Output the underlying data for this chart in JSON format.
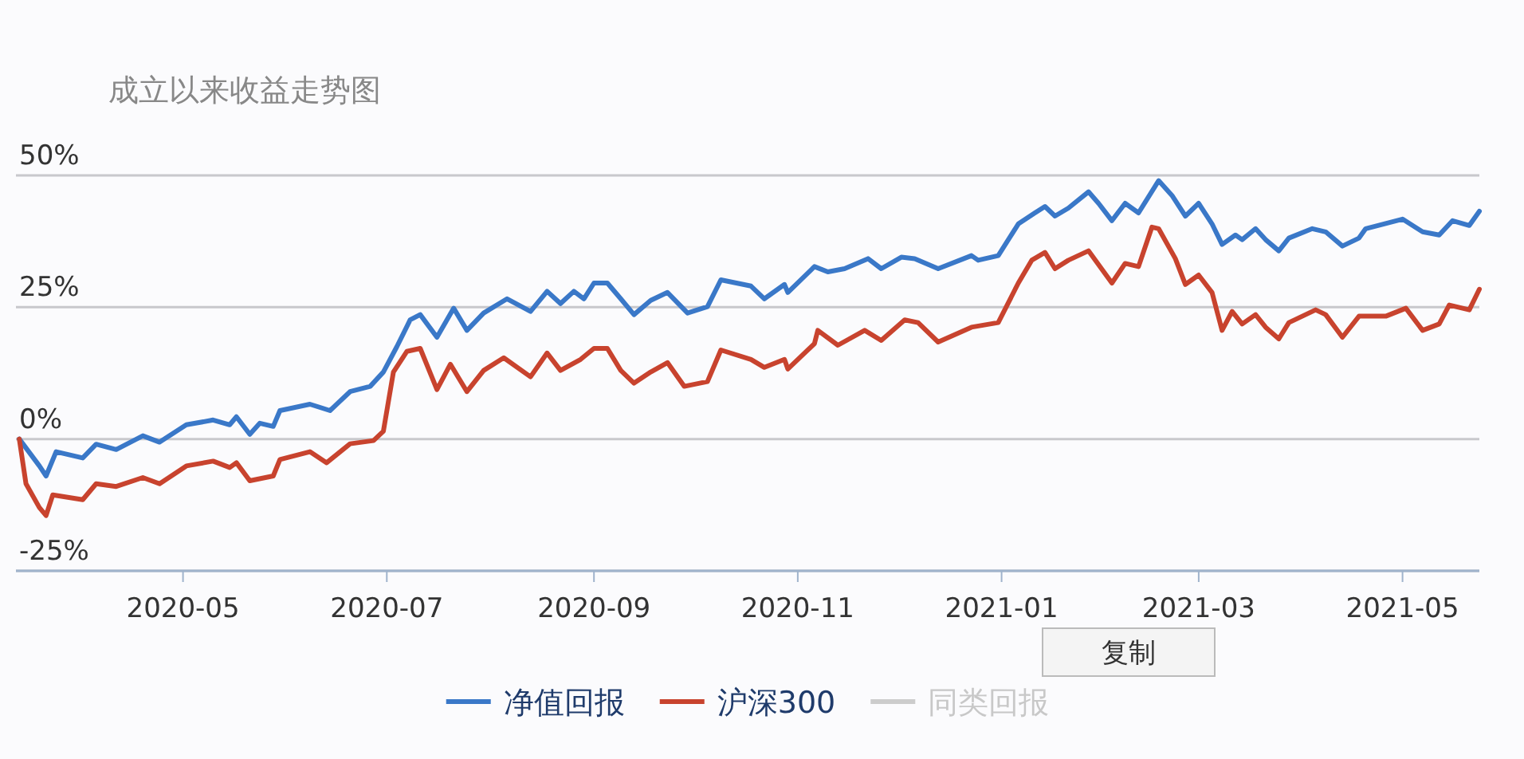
{
  "chart_data": {
    "type": "line",
    "title": "成立以来收益走势图",
    "xlim": [
      "2020-03-12",
      "2021-05-24"
    ],
    "ylim": [
      -25,
      50
    ],
    "xticks": [
      "2020-05",
      "2020-07",
      "2020-09",
      "2020-11",
      "2021-01",
      "2021-03",
      "2021-05"
    ],
    "yticks": [
      {
        "value": -25,
        "label": "-25%"
      },
      {
        "value": 0,
        "label": "0%"
      },
      {
        "value": 25,
        "label": "25%"
      },
      {
        "value": 50,
        "label": "50%"
      }
    ],
    "grid": "y",
    "legend": "bottom",
    "annotations": [
      "复制"
    ],
    "series": [
      {
        "name": "净值回报",
        "color": "#3a78c8",
        "x": [
          "2020-03-13",
          "2020-03-19",
          "2020-03-21",
          "2020-03-24",
          "2020-04-01",
          "2020-04-05",
          "2020-04-11",
          "2020-04-19",
          "2020-04-24",
          "2020-05-02",
          "2020-05-10",
          "2020-05-15",
          "2020-05-17",
          "2020-05-21",
          "2020-05-24",
          "2020-05-28",
          "2020-05-30",
          "2020-06-08",
          "2020-06-14",
          "2020-06-20",
          "2020-06-26",
          "2020-06-30",
          "2020-07-04",
          "2020-07-08",
          "2020-07-11",
          "2020-07-16",
          "2020-07-21",
          "2020-07-25",
          "2020-07-30",
          "2020-08-06",
          "2020-08-13",
          "2020-08-18",
          "2020-08-22",
          "2020-08-26",
          "2020-08-29",
          "2020-09-01",
          "2020-09-05",
          "2020-09-09",
          "2020-09-13",
          "2020-09-18",
          "2020-09-23",
          "2020-09-29",
          "2020-10-05",
          "2020-10-09",
          "2020-10-18",
          "2020-10-22",
          "2020-10-28",
          "2020-10-29",
          "2020-11-06",
          "2020-11-10",
          "2020-11-15",
          "2020-11-22",
          "2020-11-26",
          "2020-12-02",
          "2020-12-06",
          "2020-12-13",
          "2020-12-23",
          "2020-12-25",
          "2020-12-31",
          "2021-01-06",
          "2021-01-11",
          "2021-01-14",
          "2021-01-17",
          "2021-01-21",
          "2021-01-27",
          "2021-01-30",
          "2021-02-03",
          "2021-02-07",
          "2021-02-11",
          "2021-02-17",
          "2021-02-21",
          "2021-02-25",
          "2021-03-01",
          "2021-03-05",
          "2021-03-08",
          "2021-03-12",
          "2021-03-14",
          "2021-03-18",
          "2021-03-21",
          "2021-03-25",
          "2021-03-28",
          "2021-04-04",
          "2021-04-08",
          "2021-04-13",
          "2021-04-18",
          "2021-04-20",
          "2021-05-01",
          "2021-05-07",
          "2021-05-12",
          "2021-05-16",
          "2021-05-21",
          "2021-05-24"
        ],
        "values": [
          0,
          -5.1,
          -7,
          -2.4,
          -3.6,
          -1,
          -2,
          0.6,
          -0.6,
          2.7,
          3.6,
          2.7,
          4.2,
          0.9,
          3,
          2.4,
          5.4,
          6.6,
          5.4,
          9,
          10,
          12.7,
          17.5,
          22.6,
          23.6,
          19.3,
          24.8,
          20.6,
          23.9,
          26.6,
          24.2,
          28,
          25.7,
          28,
          26.6,
          29.6,
          29.6,
          26.6,
          23.6,
          26.3,
          27.8,
          23.9,
          25.1,
          30.2,
          29,
          26.6,
          29.3,
          27.8,
          32.7,
          31.7,
          32.3,
          34.2,
          32.3,
          34.5,
          34.2,
          32.3,
          34.8,
          33.9,
          34.8,
          40.8,
          42.9,
          44.1,
          42.3,
          43.8,
          46.9,
          44.7,
          41.4,
          44.7,
          42.9,
          49,
          46.2,
          42.3,
          44.7,
          40.8,
          36.9,
          38.7,
          37.8,
          39.9,
          37.8,
          35.7,
          38.1,
          39.9,
          39.3,
          36.6,
          38.1,
          39.9,
          41.7,
          39.3,
          38.7,
          41.4,
          40.5,
          43.2
        ]
      },
      {
        "name": "沪深300",
        "color": "#c8432e",
        "x": [
          "2020-03-13",
          "2020-03-15",
          "2020-03-19",
          "2020-03-21",
          "2020-03-23",
          "2020-04-01",
          "2020-04-05",
          "2020-04-11",
          "2020-04-19",
          "2020-04-24",
          "2020-05-02",
          "2020-05-10",
          "2020-05-15",
          "2020-05-17",
          "2020-05-21",
          "2020-05-28",
          "2020-05-30",
          "2020-06-08",
          "2020-06-13",
          "2020-06-20",
          "2020-06-27",
          "2020-06-30",
          "2020-07-03",
          "2020-07-07",
          "2020-07-11",
          "2020-07-16",
          "2020-07-20",
          "2020-07-25",
          "2020-07-30",
          "2020-08-05",
          "2020-08-13",
          "2020-08-18",
          "2020-08-22",
          "2020-08-28",
          "2020-09-01",
          "2020-09-05",
          "2020-09-09",
          "2020-09-13",
          "2020-09-18",
          "2020-09-23",
          "2020-09-28",
          "2020-10-05",
          "2020-10-09",
          "2020-10-18",
          "2020-10-22",
          "2020-10-28",
          "2020-10-29",
          "2020-11-06",
          "2020-11-07",
          "2020-11-13",
          "2020-11-21",
          "2020-11-26",
          "2020-12-03",
          "2020-12-07",
          "2020-12-13",
          "2020-12-23",
          "2020-12-31",
          "2021-01-06",
          "2021-01-10",
          "2021-01-14",
          "2021-01-17",
          "2021-01-21",
          "2021-01-27",
          "2021-02-03",
          "2021-02-07",
          "2021-02-11",
          "2021-02-15",
          "2021-02-17",
          "2021-02-22",
          "2021-02-25",
          "2021-03-01",
          "2021-03-05",
          "2021-03-08",
          "2021-03-11",
          "2021-03-14",
          "2021-03-18",
          "2021-03-21",
          "2021-03-25",
          "2021-03-28",
          "2021-04-05",
          "2021-04-08",
          "2021-04-13",
          "2021-04-18",
          "2021-04-26",
          "2021-05-02",
          "2021-05-07",
          "2021-05-12",
          "2021-05-15",
          "2021-05-21",
          "2021-05-24"
        ],
        "values": [
          0,
          -8.5,
          -13,
          -14.5,
          -10.6,
          -11.5,
          -8.5,
          -9,
          -7.3,
          -8.5,
          -5.1,
          -4.2,
          -5.4,
          -4.5,
          -7.9,
          -7,
          -3.9,
          -2.4,
          -4.5,
          -0.9,
          -0.3,
          1.5,
          12.7,
          16.6,
          17.2,
          9.4,
          14.2,
          9,
          13,
          15.4,
          11.8,
          16.3,
          13,
          15.1,
          17.2,
          17.2,
          13,
          10.6,
          12.7,
          14.5,
          10,
          10.9,
          16.9,
          15.1,
          13.6,
          15.1,
          13.3,
          18.1,
          20.6,
          17.8,
          20.6,
          18.7,
          22.6,
          22.1,
          18.4,
          21.2,
          22.1,
          29.6,
          33.9,
          35.4,
          32.3,
          33.9,
          35.7,
          29.6,
          33.3,
          32.7,
          40.2,
          39.9,
          34.2,
          29.3,
          31.1,
          27.8,
          20.6,
          24.2,
          21.8,
          23.6,
          21.2,
          19,
          22.1,
          24.5,
          23.6,
          19.3,
          23.3,
          23.3,
          24.8,
          20.6,
          21.8,
          25.4,
          24.5,
          28.4
        ]
      },
      {
        "name": "同类回报",
        "color": "#cccccc"
      }
    ]
  }
}
